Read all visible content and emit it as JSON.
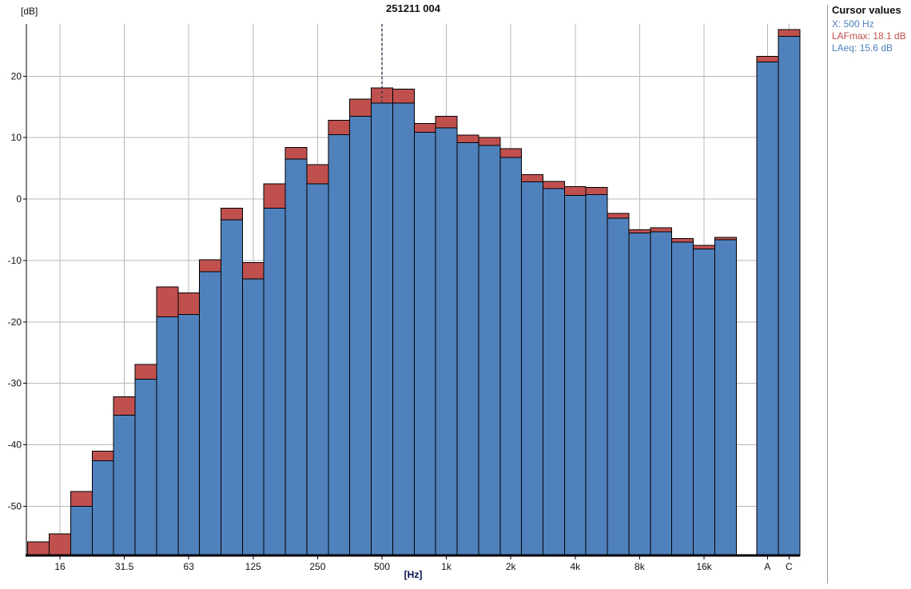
{
  "title": "251211 004",
  "y_axis": {
    "unit_label": "[dB]",
    "ticks": [
      20,
      10,
      0,
      -10,
      -20,
      -30,
      -40,
      -50
    ]
  },
  "x_axis": {
    "unit_label": "[Hz]",
    "tick_labels": [
      "16",
      "31.5",
      "63",
      "125",
      "250",
      "500",
      "1k",
      "2k",
      "4k",
      "8k",
      "16k"
    ]
  },
  "cursor_panel": {
    "heading": "Cursor values",
    "x_line": "X: 500 Hz",
    "lafmax_line": "LAFmax: 18.1 dB",
    "laeq_line": "LAeq: 15.6 dB"
  },
  "colors": {
    "laeq_fill": "#4f81bd",
    "lafmax_fill": "#c0504d",
    "bar_stroke": "#000000",
    "grid": "#b8b8b8",
    "axis": "#000000",
    "cursor_line": "#343453",
    "x_text": "#4f81bd",
    "lafmax_text": "#c0504d",
    "laeq_text": "#4f81bd",
    "tick_text": "#111111"
  },
  "chart_data": {
    "type": "bar",
    "title": "251211 004",
    "xlabel": "[Hz]",
    "ylabel": "[dB]",
    "ylim": [
      -58,
      28.5
    ],
    "grid": true,
    "bands": [
      "12.5",
      "16",
      "20",
      "25",
      "31.5",
      "40",
      "50",
      "63",
      "80",
      "100",
      "125",
      "160",
      "200",
      "250",
      "315",
      "400",
      "500",
      "630",
      "800",
      "1k",
      "1.25k",
      "1.6k",
      "2k",
      "2.5k",
      "3.15k",
      "4k",
      "5k",
      "6.3k",
      "8k",
      "10k",
      "12.5k",
      "16k",
      "20k"
    ],
    "series": [
      {
        "name": "LAeq",
        "values": [
          -58,
          -58,
          -50.0,
          -42.6,
          -35.2,
          -29.3,
          -19.2,
          -18.8,
          -11.8,
          -3.4,
          -13.0,
          -1.5,
          6.5,
          2.5,
          10.5,
          13.5,
          15.6,
          15.6,
          10.9,
          11.6,
          9.2,
          8.7,
          6.8,
          2.8,
          1.7,
          0.6,
          0.7,
          -3.1,
          -5.5,
          -5.3,
          -7.0,
          -8.1,
          -6.6
        ]
      },
      {
        "name": "LAFmax",
        "values": [
          -55.8,
          -54.5,
          -47.6,
          -41.0,
          -32.2,
          -26.9,
          -14.3,
          -15.3,
          -9.9,
          -1.5,
          -10.3,
          2.5,
          8.4,
          5.6,
          12.8,
          16.3,
          18.1,
          17.9,
          12.3,
          13.5,
          10.4,
          10.0,
          8.2,
          4.0,
          2.9,
          2.0,
          1.9,
          -2.3,
          -5.0,
          -4.7,
          -6.4,
          -7.5,
          -6.2
        ]
      }
    ],
    "totals": {
      "categories": [
        "A",
        "C"
      ],
      "laeq": [
        22.3,
        26.5
      ],
      "lafmax": [
        23.2,
        27.6
      ]
    },
    "cursor": {
      "band": "500",
      "x_value": "500 Hz",
      "lafmax_db": 18.1,
      "laeq_db": 15.6
    }
  }
}
